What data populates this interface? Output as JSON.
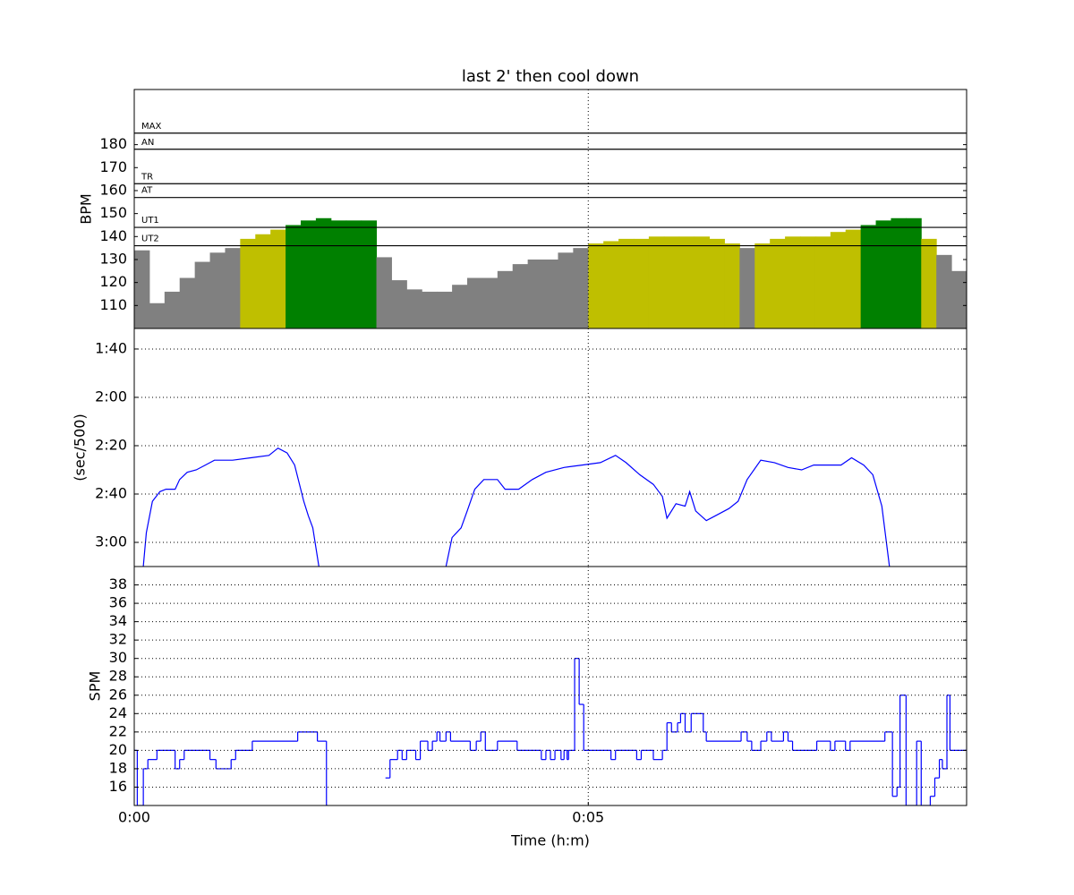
{
  "chart_data": [
    {
      "type": "bar",
      "title": "last 2' then cool down",
      "ylabel": "BPM",
      "xlim": [
        0,
        550
      ],
      "ylim": [
        100,
        204
      ],
      "yticks": [
        110,
        120,
        130,
        140,
        150,
        160,
        170,
        180
      ],
      "x": [
        0,
        10,
        20,
        30,
        40,
        50,
        60,
        70,
        80,
        90,
        100,
        110,
        120,
        130,
        140,
        150,
        160,
        170,
        180,
        190,
        200,
        210,
        220,
        230,
        240,
        250,
        260,
        270,
        280,
        290,
        300,
        310,
        320,
        330,
        340,
        350,
        360,
        370,
        380,
        390,
        400,
        410,
        420,
        430,
        440,
        450,
        460,
        470,
        480,
        490,
        500,
        510,
        520,
        530,
        540
      ],
      "values": [
        134,
        111,
        116,
        122,
        129,
        133,
        135,
        139,
        141,
        143,
        145,
        147,
        148,
        147,
        147,
        147,
        131,
        121,
        117,
        116,
        116,
        119,
        122,
        122,
        125,
        128,
        130,
        130,
        133,
        135,
        137,
        138,
        139,
        139,
        140,
        140,
        140,
        140,
        139,
        137,
        135,
        137,
        139,
        140,
        140,
        140,
        142,
        143,
        145,
        147,
        148,
        148,
        139,
        132,
        125
      ],
      "zone_colors": [
        "#808080",
        "#bfbf00",
        "#008000"
      ],
      "zones": [
        {
          "label": "MAX",
          "value": 185
        },
        {
          "label": "AN",
          "value": 178
        },
        {
          "label": "TR",
          "value": 163
        },
        {
          "label": "AT",
          "value": 157
        },
        {
          "label": "UT1",
          "value": 144
        },
        {
          "label": "UT2",
          "value": 136
        }
      ]
    },
    {
      "type": "line",
      "ylabel": "(sec/500)",
      "xlim": [
        0,
        550
      ],
      "ylim": [
        190,
        91.5
      ],
      "grid": true,
      "color": "#0000ff",
      "yticks": [
        {
          "value": 100,
          "label": "1:40"
        },
        {
          "value": 120,
          "label": "2:00"
        },
        {
          "value": 140,
          "label": "2:20"
        },
        {
          "value": 160,
          "label": "2:40"
        },
        {
          "value": 180,
          "label": "3:00"
        }
      ],
      "x": [
        6,
        8,
        12,
        17,
        21,
        27,
        30,
        35,
        41,
        47,
        53,
        65,
        77,
        89,
        95,
        101,
        106,
        112,
        115,
        118,
        122,
        164,
        206,
        210,
        216,
        220,
        225,
        231,
        240,
        245,
        254,
        263,
        272,
        284,
        296,
        308,
        318,
        325,
        334,
        343,
        349,
        352,
        358,
        364,
        367,
        371,
        378,
        384,
        393,
        399,
        405,
        414,
        423,
        432,
        441,
        449,
        458,
        467,
        474,
        482,
        488,
        494,
        499
      ],
      "values": [
        190,
        176,
        163,
        159,
        158,
        158,
        154,
        151,
        150,
        148,
        146,
        146,
        145,
        144,
        141,
        143,
        148,
        163,
        169,
        174,
        190,
        null,
        190,
        178,
        174,
        167,
        158,
        154,
        154,
        158,
        158,
        154,
        151,
        149,
        148,
        147,
        144,
        147,
        152,
        156,
        161,
        170,
        164,
        165,
        159,
        167,
        171,
        169,
        166,
        163,
        154,
        146,
        147,
        149,
        150,
        148,
        148,
        148,
        145,
        148,
        152,
        165,
        190
      ]
    },
    {
      "type": "step",
      "ylabel": "SPM",
      "xlabel": "Time (h:m)",
      "xlim": [
        0,
        550
      ],
      "ylim": [
        14,
        40
      ],
      "grid": true,
      "color": "#0000ff",
      "yticks": [
        16,
        18,
        20,
        22,
        24,
        26,
        28,
        30,
        32,
        34,
        36,
        38
      ],
      "xticks": [
        {
          "value": 0,
          "label": "0:00"
        },
        {
          "value": 300,
          "label": "0:05"
        }
      ],
      "x": [
        0,
        2,
        6,
        9,
        15,
        27,
        30,
        33,
        50,
        54,
        64,
        67,
        78,
        108,
        121,
        127,
        128,
        166,
        169,
        174,
        177,
        180,
        186,
        189,
        194,
        197,
        200,
        202,
        206,
        209,
        222,
        226,
        229,
        232,
        240,
        253,
        269,
        272,
        275,
        278,
        282,
        284,
        286,
        287,
        291,
        294,
        297,
        315,
        318,
        332,
        335,
        343,
        349,
        352,
        355,
        359,
        361,
        364,
        368,
        376,
        378,
        401,
        405,
        408,
        414,
        418,
        421,
        429,
        432,
        435,
        451,
        460,
        463,
        470,
        473,
        496,
        501,
        504,
        506,
        510,
        517,
        520,
        526,
        529,
        532,
        534,
        537,
        539,
        550
      ],
      "values": [
        20,
        14,
        18,
        19,
        20,
        18,
        19,
        20,
        19,
        18,
        19,
        20,
        21,
        22,
        21,
        14,
        null,
        17,
        19,
        20,
        19,
        20,
        19,
        21,
        20,
        21,
        22,
        21,
        22,
        21,
        20,
        21,
        22,
        20,
        21,
        20,
        19,
        20,
        19,
        20,
        19,
        20,
        19,
        20,
        30,
        25,
        20,
        19,
        20,
        19,
        20,
        19,
        20,
        23,
        22,
        23,
        24,
        22,
        24,
        22,
        21,
        22,
        21,
        20,
        21,
        22,
        21,
        22,
        21,
        20,
        21,
        20,
        21,
        20,
        21,
        22,
        15,
        16,
        26,
        14,
        21,
        14,
        15,
        17,
        19,
        18,
        26,
        20,
        20
      ]
    }
  ]
}
